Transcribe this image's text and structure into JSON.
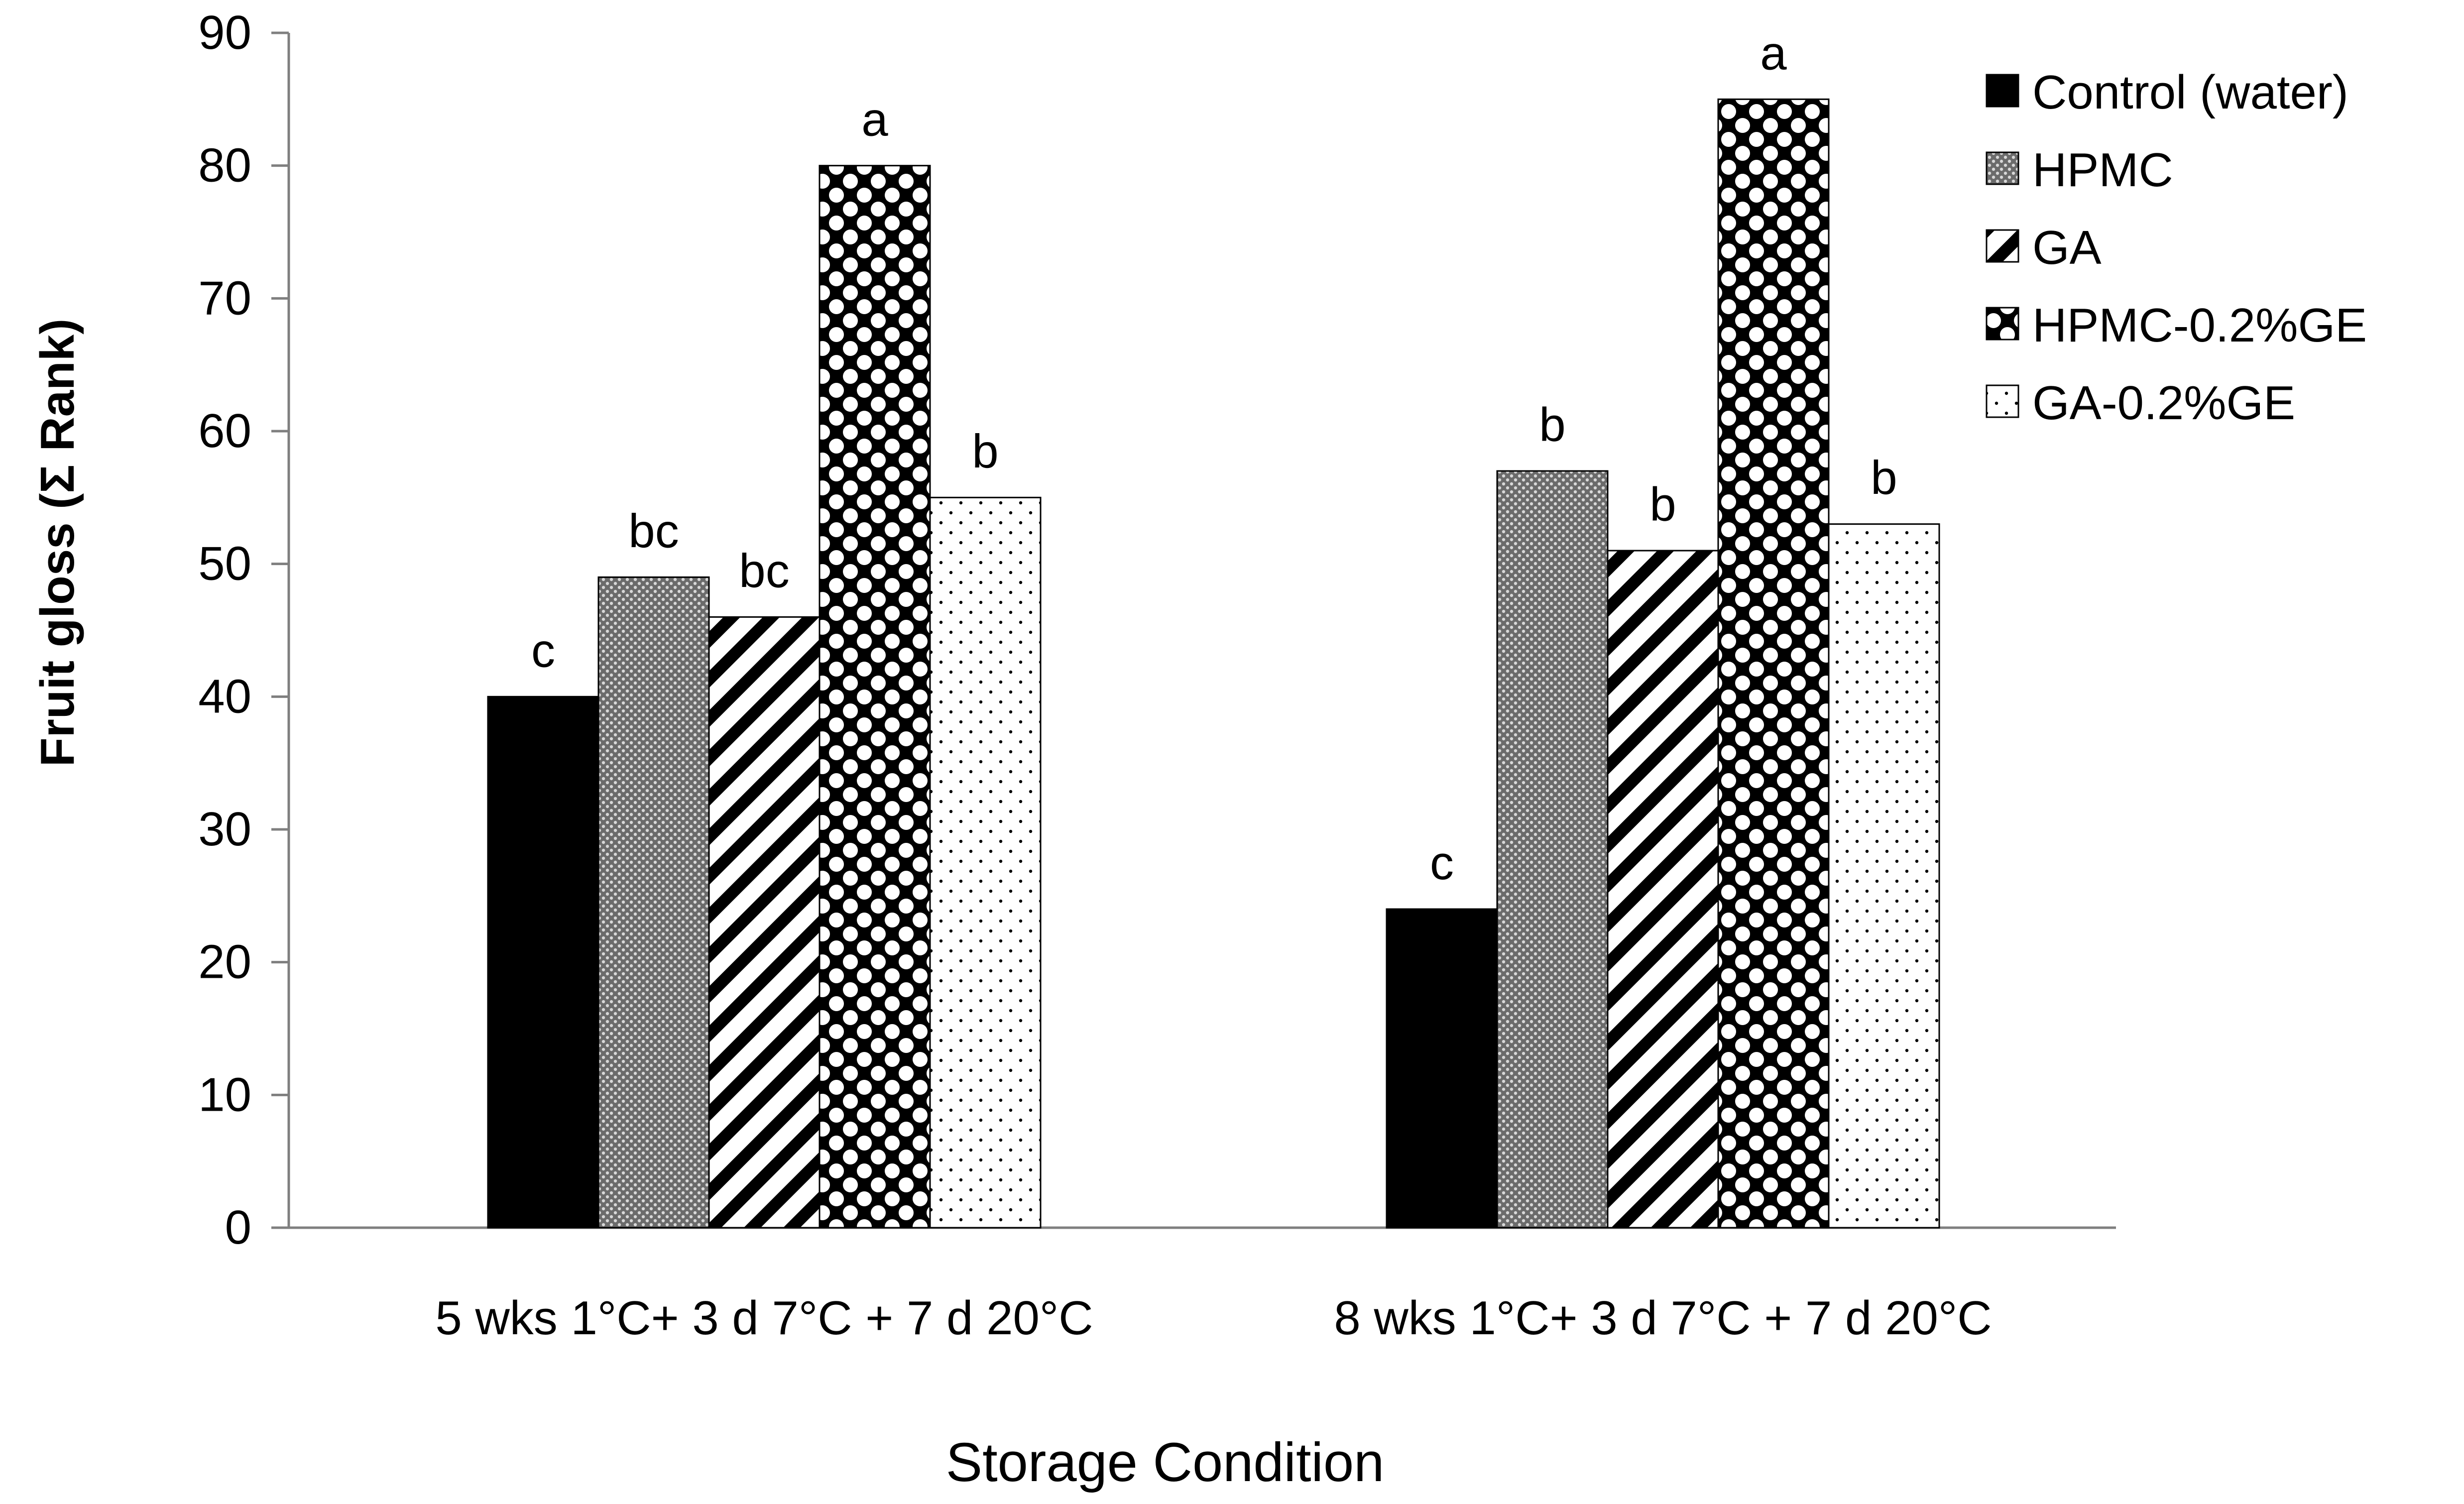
{
  "chart_data": {
    "type": "bar",
    "title": "",
    "xlabel": "Storage Condition",
    "ylabel": "Fruit gloss (Σ Rank)",
    "ylim": [
      0,
      90
    ],
    "yticks": [
      0,
      10,
      20,
      30,
      40,
      50,
      60,
      70,
      80,
      90
    ],
    "grid": false,
    "legend_position": "top-right",
    "categories": [
      "5 wks 1°C+ 3 d 7°C + 7 d 20°C",
      "8 wks 1°C+ 3 d 7°C + 7 d 20°C"
    ],
    "series": [
      {
        "name": "Control (water)",
        "values": [
          40,
          24
        ],
        "letters": [
          "c",
          "c"
        ],
        "pattern": "solid"
      },
      {
        "name": "HPMC",
        "values": [
          49,
          57
        ],
        "letters": [
          "bc",
          "b"
        ],
        "pattern": "gray-dots"
      },
      {
        "name": "GA",
        "values": [
          46,
          51
        ],
        "letters": [
          "bc",
          "b"
        ],
        "pattern": "diagonal-stripes"
      },
      {
        "name": "HPMC-0.2%GE",
        "values": [
          80,
          85
        ],
        "letters": [
          "a",
          "a"
        ],
        "pattern": "diamond-checker"
      },
      {
        "name": "GA-0.2%GE",
        "values": [
          55,
          53
        ],
        "letters": [
          "b",
          "b"
        ],
        "pattern": "sparse-dots"
      }
    ]
  }
}
